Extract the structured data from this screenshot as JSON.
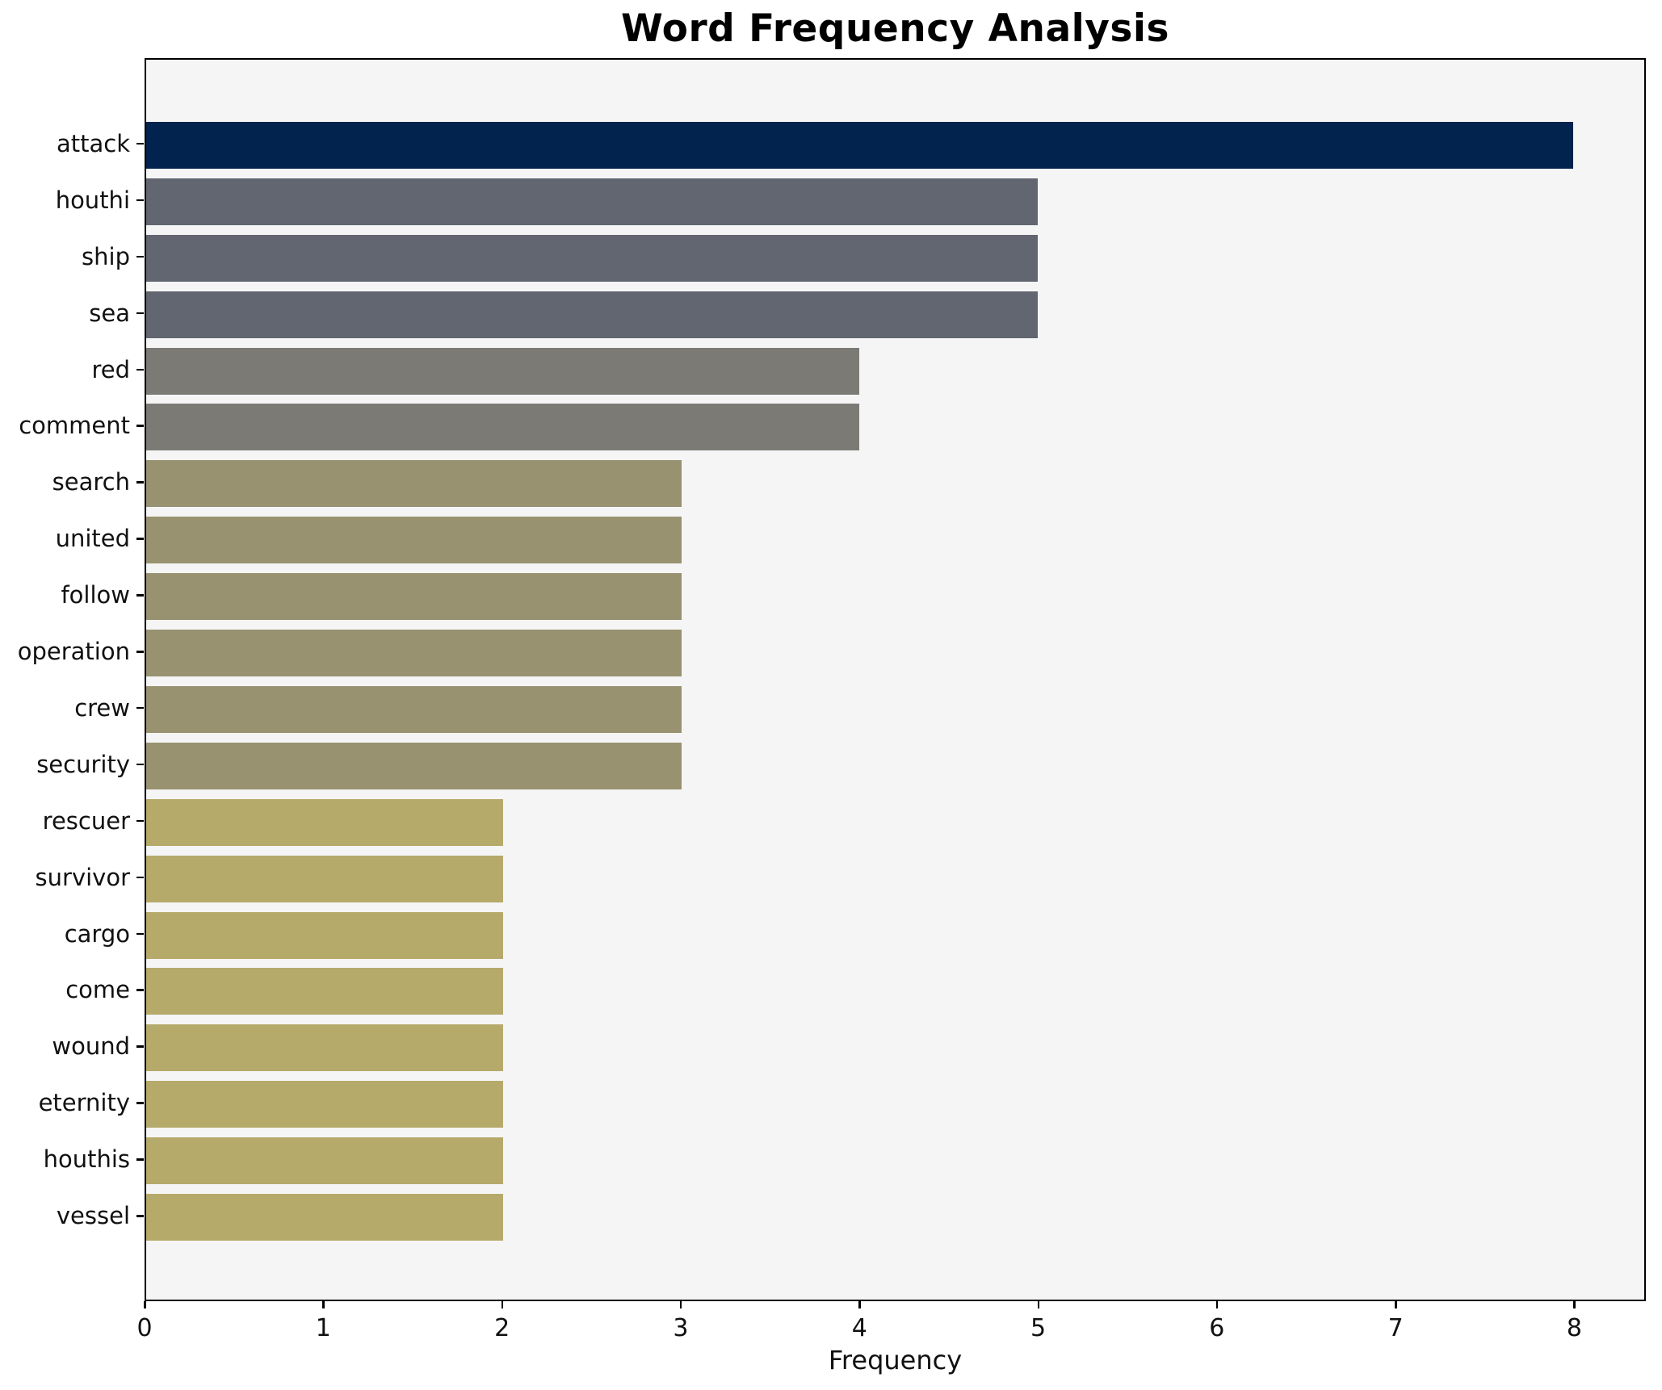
{
  "chart_data": {
    "type": "bar",
    "orientation": "horizontal",
    "title": "Word Frequency Analysis",
    "xlabel": "Frequency",
    "ylabel": "",
    "categories": [
      "attack",
      "houthi",
      "ship",
      "sea",
      "red",
      "comment",
      "search",
      "united",
      "follow",
      "operation",
      "crew",
      "security",
      "rescuer",
      "survivor",
      "cargo",
      "come",
      "wound",
      "eternity",
      "houthis",
      "vessel"
    ],
    "values": [
      8,
      5,
      5,
      5,
      4,
      4,
      3,
      3,
      3,
      3,
      3,
      3,
      2,
      2,
      2,
      2,
      2,
      2,
      2,
      2
    ],
    "bar_colors": [
      "#01234d",
      "#616670",
      "#616670",
      "#616670",
      "#7b7a74",
      "#7b7a74",
      "#989270",
      "#989270",
      "#989270",
      "#989270",
      "#989270",
      "#989270",
      "#b6aa6b",
      "#b6aa6b",
      "#b6aa6b",
      "#b6aa6b",
      "#b6aa6b",
      "#b6aa6b",
      "#b6aa6b",
      "#b6aa6b"
    ],
    "x_ticks": [
      0,
      1,
      2,
      3,
      4,
      5,
      6,
      7,
      8
    ],
    "xlim": [
      0,
      8.4
    ],
    "grid": false,
    "legend": null,
    "plot_background": "#f5f5f6",
    "figure_background": "#ffffff",
    "spine_color": "#000000"
  }
}
